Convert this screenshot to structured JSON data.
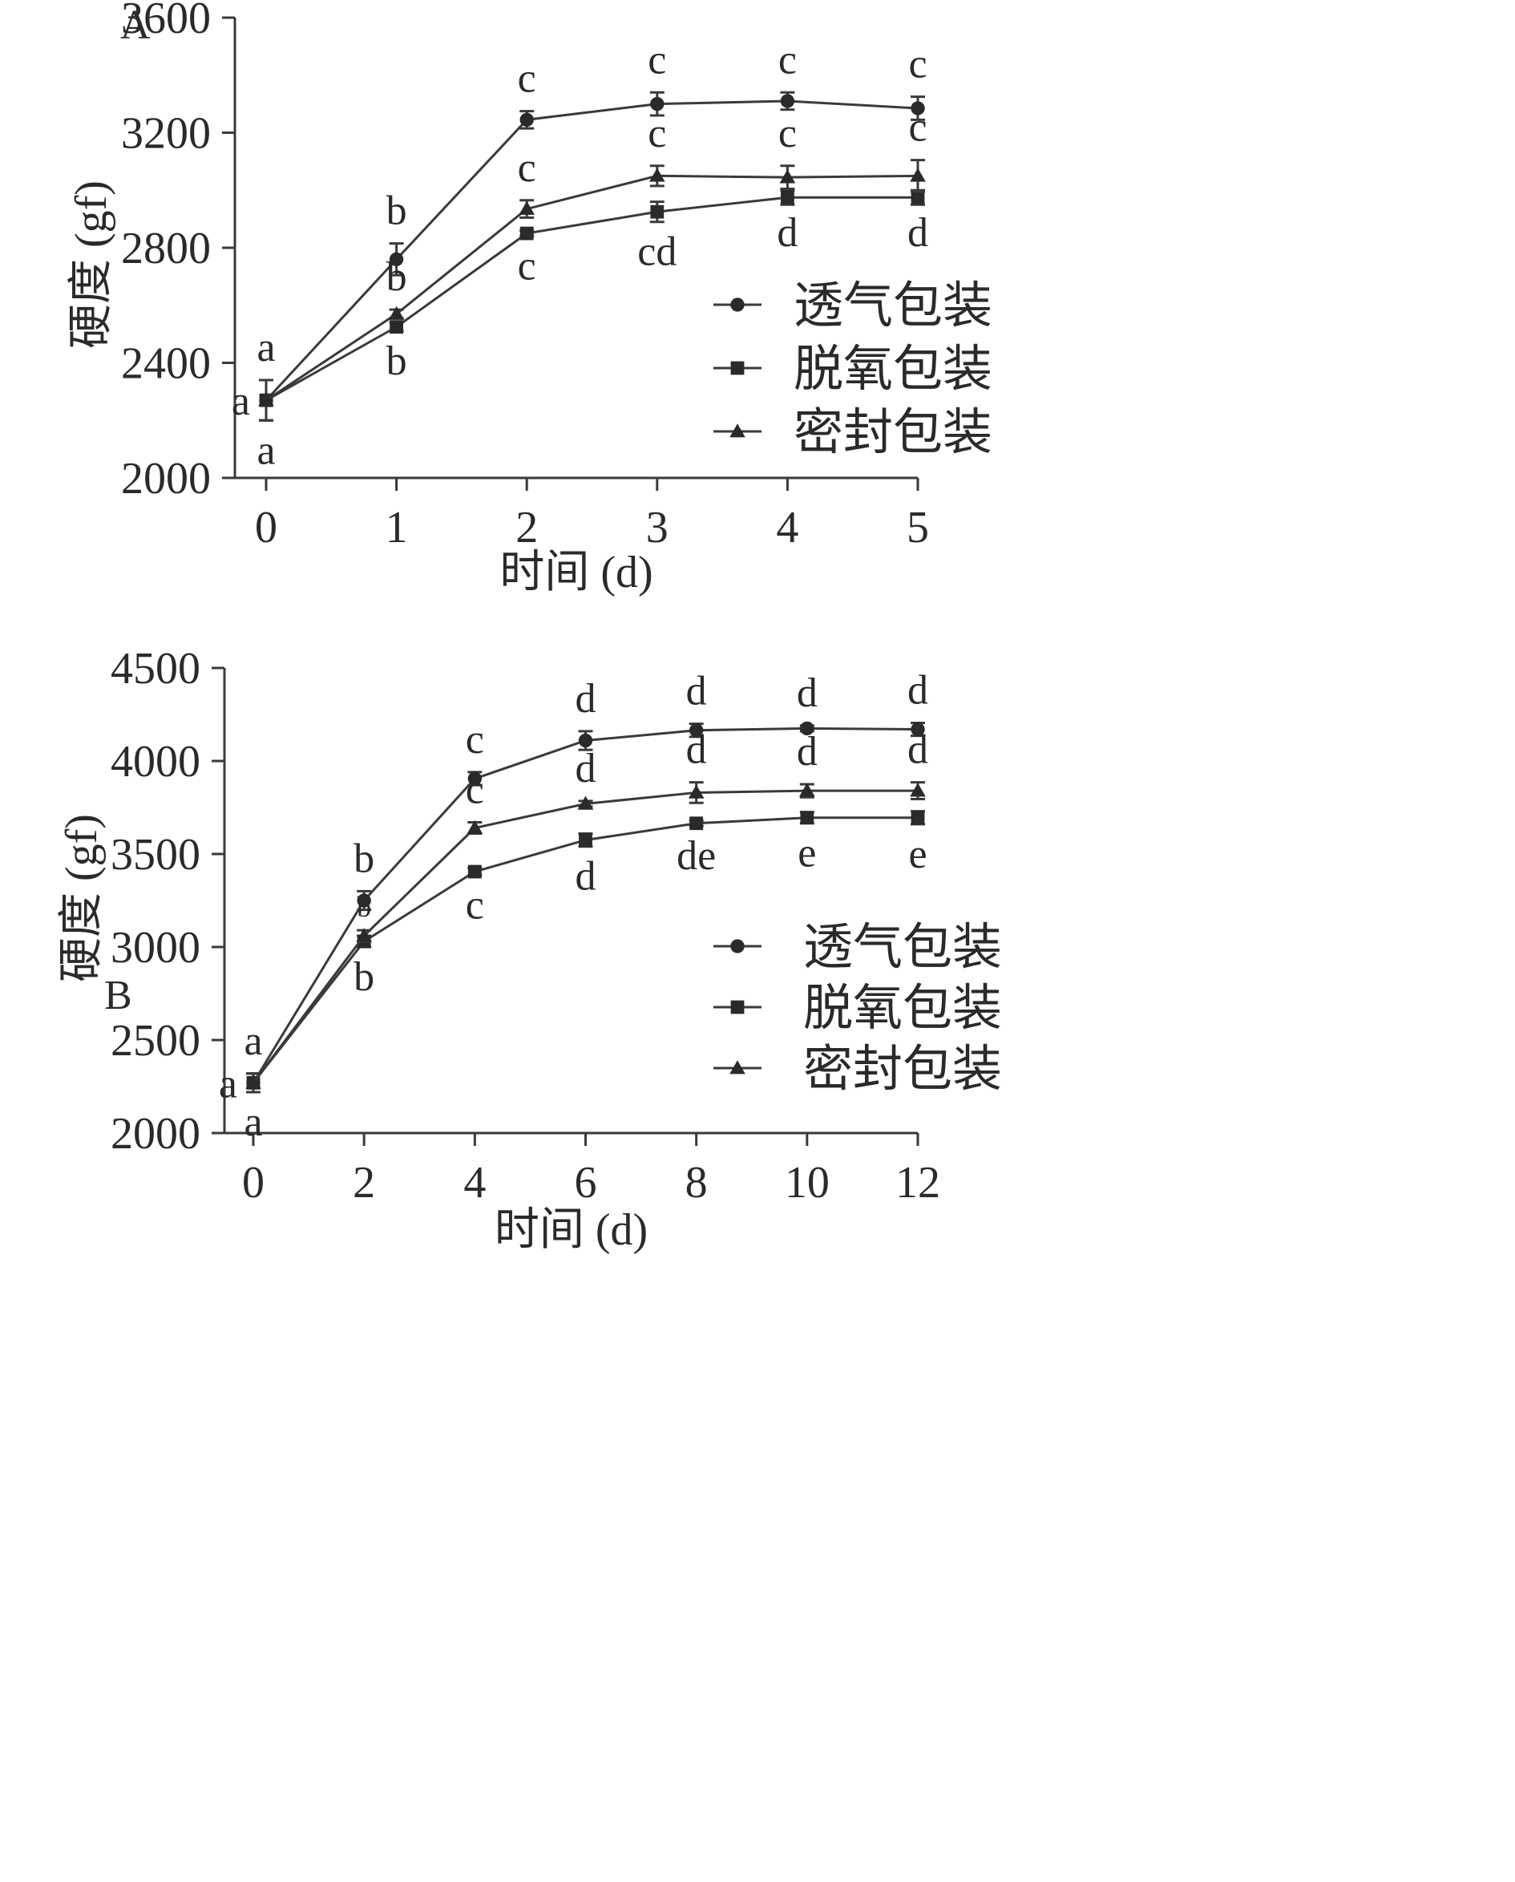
{
  "chart_data": [
    {
      "panel": "A",
      "type": "line",
      "ylabel": "硬度 (gf)",
      "xlabel": "时间 (d)",
      "ylim": [
        2000,
        3600
      ],
      "yticks": [
        2000,
        2400,
        2800,
        3200,
        3600
      ],
      "x": [
        0,
        1,
        2,
        3,
        4,
        5
      ],
      "legend_position": "right-middle",
      "series": [
        {
          "name": "透气包装",
          "marker": "circle",
          "values": [
            2270,
            2760,
            3245,
            3300,
            3310,
            3285
          ],
          "errors": [
            70,
            55,
            30,
            40,
            30,
            40
          ],
          "labels": [
            "a",
            "b",
            "c",
            "c",
            "c",
            "c"
          ]
        },
        {
          "name": "脱氧包装",
          "marker": "square",
          "values": [
            2270,
            2525,
            2850,
            2925,
            2975,
            2975
          ],
          "errors": [
            70,
            15,
            10,
            35,
            25,
            25
          ],
          "labels": [
            "a",
            "b",
            "c",
            "cd",
            "d",
            "d"
          ]
        },
        {
          "name": "密封包装",
          "marker": "triangle",
          "values": [
            2270,
            2570,
            2935,
            3050,
            3045,
            3050
          ],
          "errors": [
            70,
            15,
            30,
            35,
            40,
            55
          ],
          "labels": [
            "a",
            "b",
            "c",
            "c",
            "c",
            "c"
          ]
        }
      ]
    },
    {
      "panel": "B",
      "type": "line",
      "ylabel": "硬度 (gf)",
      "xlabel": "时间 (d)",
      "ylim": [
        2000,
        4500
      ],
      "yticks": [
        2000,
        2500,
        3000,
        3500,
        4000,
        4500
      ],
      "x": [
        0,
        2,
        4,
        6,
        8,
        10,
        12
      ],
      "legend_position": "right-bottom",
      "series": [
        {
          "name": "透气包装",
          "marker": "circle",
          "values": [
            2270,
            3250,
            3905,
            4110,
            4165,
            4175,
            4170
          ],
          "errors": [
            50,
            50,
            35,
            50,
            35,
            15,
            35
          ],
          "labels": [
            "a",
            "b",
            "c",
            "d",
            "d",
            "d",
            "d"
          ]
        },
        {
          "name": "脱氧包装",
          "marker": "square",
          "values": [
            2270,
            3030,
            3405,
            3575,
            3665,
            3695,
            3695
          ],
          "errors": [
            50,
            30,
            20,
            35,
            15,
            30,
            35
          ],
          "labels": [
            "a",
            "b",
            "c",
            "d",
            "de",
            "e",
            "e"
          ]
        },
        {
          "name": "密封包装",
          "marker": "triangle",
          "values": [
            2270,
            3060,
            3640,
            3770,
            3830,
            3840,
            3840
          ],
          "errors": [
            50,
            30,
            30,
            15,
            55,
            35,
            45
          ],
          "labels": [
            "a",
            "b",
            "c",
            "d",
            "d",
            "d",
            "d"
          ]
        }
      ]
    }
  ]
}
